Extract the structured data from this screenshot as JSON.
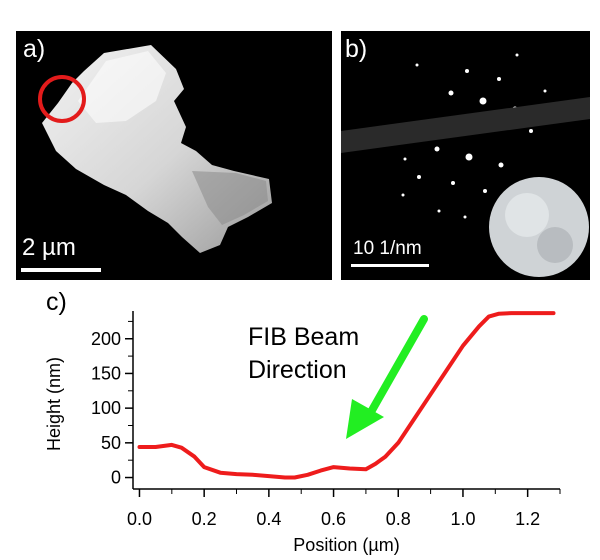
{
  "figure": {
    "panel_a": {
      "label": "a)",
      "scalebar_label": "2 µm"
    },
    "panel_b": {
      "label": "b)",
      "scalebar_label": "10 1/nm"
    },
    "panel_c": {
      "label": "c)",
      "annotation": "FIB Beam Direction",
      "annotation_line1": "FIB Beam",
      "annotation_line2": "Direction"
    },
    "colors": {
      "curve": "#ee1c1c",
      "arrow": "#22ee22",
      "highlight_circle": "#e31b1b"
    }
  },
  "chart_data": {
    "type": "line",
    "xlabel": "Position (µm)",
    "ylabel": "Height (nm)",
    "xlim": [
      -0.02,
      1.3
    ],
    "ylim": [
      -5,
      240
    ],
    "x_ticks": [
      "0.0",
      "0.2",
      "0.4",
      "0.6",
      "0.8",
      "1.0",
      "1.2"
    ],
    "x_tick_values": [
      0.0,
      0.2,
      0.4,
      0.6,
      0.8,
      1.0,
      1.2
    ],
    "y_ticks": [
      "0",
      "50",
      "100",
      "150",
      "200"
    ],
    "y_tick_values": [
      0,
      50,
      100,
      150,
      200
    ],
    "grid": false,
    "series": [
      {
        "x": [
          0.0,
          0.05,
          0.1,
          0.13,
          0.17,
          0.2,
          0.25,
          0.3,
          0.35,
          0.4,
          0.45,
          0.48,
          0.52,
          0.56,
          0.6,
          0.65,
          0.7,
          0.73,
          0.76,
          0.8,
          0.85,
          0.9,
          0.95,
          1.0,
          1.05,
          1.08,
          1.11,
          1.15,
          1.2,
          1.25,
          1.28
        ],
        "y": [
          44,
          44,
          47,
          43,
          30,
          15,
          7,
          5,
          4,
          2,
          0,
          0,
          4,
          10,
          15,
          13,
          12,
          20,
          30,
          50,
          85,
          120,
          155,
          190,
          218,
          232,
          236,
          237,
          237,
          237,
          237
        ]
      }
    ]
  }
}
